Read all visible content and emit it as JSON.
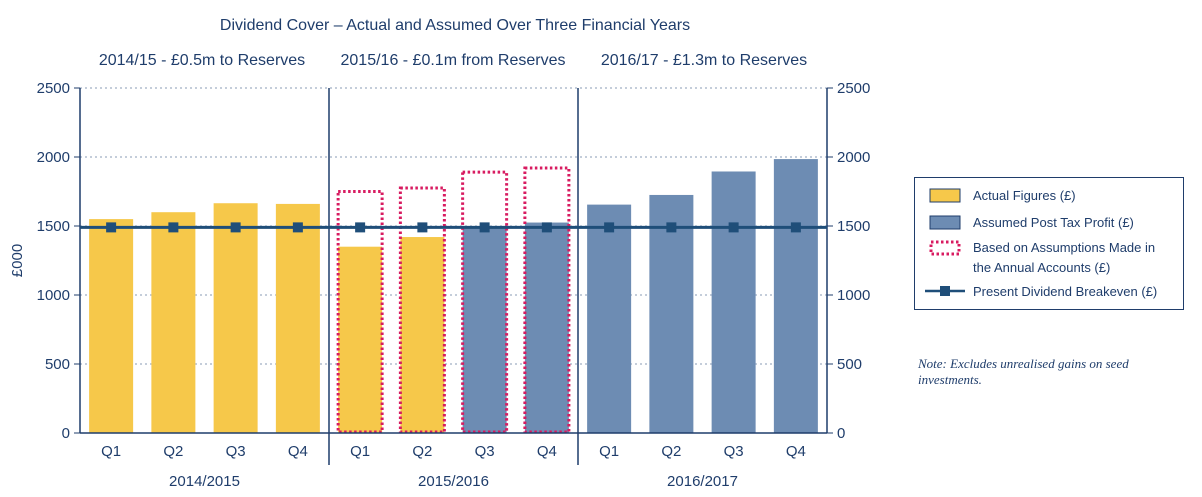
{
  "chart_data": {
    "type": "bar",
    "title": "Dividend Cover – Actual and Assumed Over Three Financial Years",
    "periods": [
      {
        "label": "2014/15 - £0.5m to Reserves",
        "year": "2014/2015",
        "quarters": [
          "Q1",
          "Q2",
          "Q3",
          "Q4"
        ]
      },
      {
        "label": "2015/16 - £0.1m from Reserves",
        "year": "2015/2016",
        "quarters": [
          "Q1",
          "Q2",
          "Q3",
          "Q4"
        ]
      },
      {
        "label": "2016/17 - £1.3m to Reserves",
        "year": "2016/2017",
        "quarters": [
          "Q1",
          "Q2",
          "Q3",
          "Q4"
        ]
      }
    ],
    "ylabel": "£000",
    "ylim": [
      0,
      2500
    ],
    "yticks": [
      "0",
      "500",
      "1000",
      "1500",
      "2000",
      "2500"
    ],
    "grid": true,
    "series": [
      {
        "name": "Actual Figures (£)",
        "kind": "bar",
        "color": "#f6c84a",
        "values": [
          1550,
          1600,
          1665,
          1660,
          1350,
          1420,
          null,
          null,
          null,
          null,
          null,
          null
        ]
      },
      {
        "name": "Assumed Post Tax Profit (£)",
        "kind": "bar",
        "color": "#6d8cb3",
        "values": [
          null,
          null,
          null,
          null,
          null,
          null,
          1500,
          1525,
          1655,
          1725,
          1895,
          1985
        ]
      },
      {
        "name": "Based on Assumptions Made in the Annual Accounts (£)",
        "kind": "dotted-outline-bar",
        "color": "#d81b60",
        "values": [
          null,
          null,
          null,
          null,
          1750,
          1775,
          1890,
          1920,
          null,
          null,
          null,
          null
        ]
      },
      {
        "name": "Present Dividend Breakeven (£)",
        "kind": "line",
        "color": "#1f4e79",
        "values": [
          1490,
          1490,
          1490,
          1490,
          1490,
          1490,
          1490,
          1490,
          1490,
          1490,
          1490,
          1490
        ]
      }
    ],
    "legend_placement": "right"
  },
  "legend": {
    "actual": "Actual Figures (£)",
    "assumed": "Assumed Post Tax Profit (£)",
    "based_line1": "Based on Assumptions Made in",
    "based_line2": "the Annual Accounts (£)",
    "breakeven": "Present Dividend Breakeven (£)"
  },
  "note": "Note: Excludes unrealised gains on seed investments.",
  "colors": {
    "axis": "#1f3d6b",
    "grid": "#8a9bb5"
  }
}
